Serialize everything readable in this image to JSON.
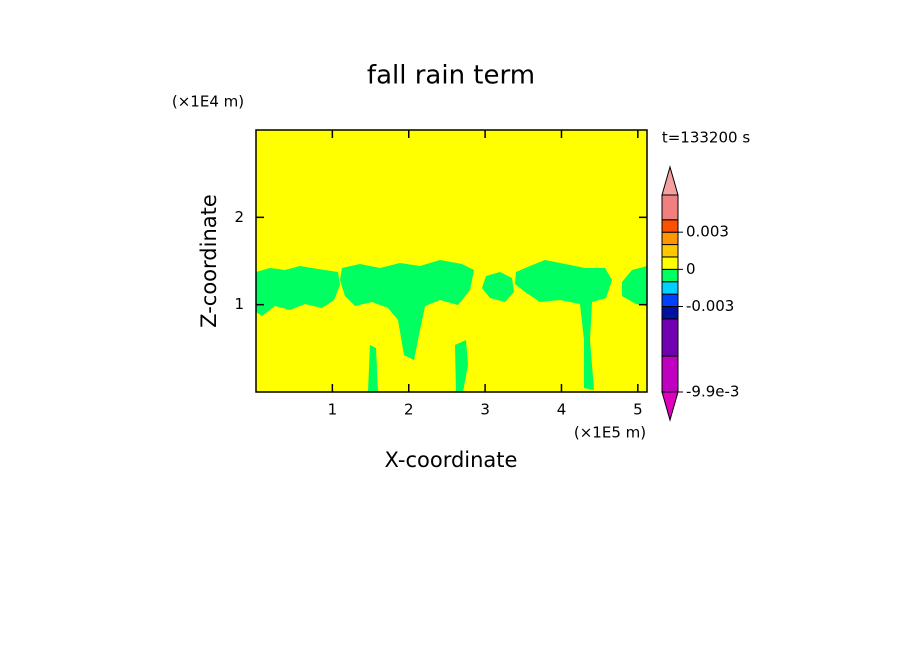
{
  "chart_data": {
    "type": "contour",
    "title": "fall rain term",
    "xlabel": "X-coordinate",
    "ylabel": "Z-coordinate",
    "xunit": "(×1E5 m)",
    "yunit": "(×1E4 m)",
    "time_label": "t=133200 s",
    "xlim": [
      0,
      5.12
    ],
    "ylim": [
      0,
      3
    ],
    "xticks": [
      1,
      2,
      3,
      4,
      5
    ],
    "yticks": [
      1,
      2
    ],
    "colorbar": {
      "levels": [
        -0.0099,
        -0.007,
        -0.004,
        -0.003,
        -0.002,
        -0.001,
        0,
        0.001,
        0.002,
        0.003,
        0.004,
        0.006
      ],
      "colors": [
        "#c000c0",
        "#7000b0",
        "#0010a0",
        "#0040ff",
        "#00d0ff",
        "#00ff60",
        "#ffff00",
        "#ffc800",
        "#ff9600",
        "#ff5000",
        "#f08080"
      ],
      "over_color": "#f5a0a0",
      "under_color": "#e000c0",
      "ticks": [
        0.003,
        0,
        -0.003,
        {
          "value": -0.0099,
          "label": "-9.9e-3"
        }
      ]
    }
  }
}
